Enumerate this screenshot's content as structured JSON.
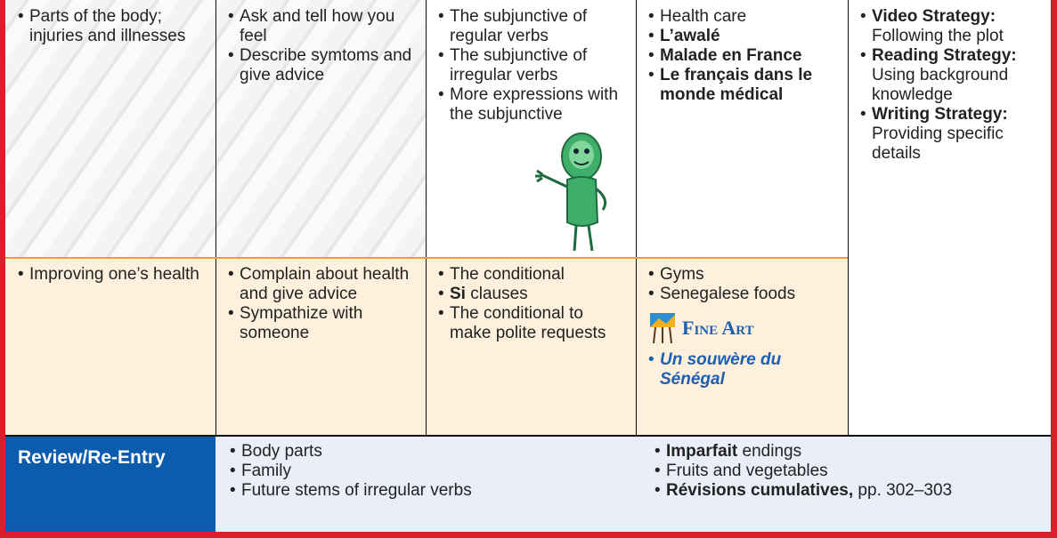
{
  "rows": [
    {
      "cells": [
        {
          "items": [
            [
              {
                "text": "Parts of the body; injuries and illnesses"
              }
            ]
          ]
        },
        {
          "items": [
            [
              {
                "text": "Ask and tell how you feel"
              }
            ],
            [
              {
                "text": "Describe symtoms and give advice"
              }
            ]
          ]
        },
        {
          "items": [
            [
              {
                "text": "The subjunctive of regular verbs"
              }
            ],
            [
              {
                "text": "The subjunctive of irregular verbs"
              }
            ],
            [
              {
                "text": "More expressions with the subjunctive"
              }
            ]
          ]
        },
        {
          "items": [
            [
              {
                "text": "Health care"
              }
            ],
            [
              {
                "text": "L’awalé",
                "bold": true
              }
            ],
            [
              {
                "text": "Malade en France",
                "bold": true
              }
            ],
            [
              {
                "text": "Le français dans le monde médical",
                "bold": true
              }
            ]
          ]
        },
        {
          "items": [
            [
              {
                "text": "Video Strategy:",
                "bold": true
              },
              {
                "text": " Following the plot"
              }
            ],
            [
              {
                "text": "Reading Strategy:",
                "bold": true
              },
              {
                "text": " Using background knowledge"
              }
            ],
            [
              {
                "text": "Writing Strategy:",
                "bold": true
              },
              {
                "text": " Providing specific details"
              }
            ]
          ]
        }
      ]
    },
    {
      "cells": [
        {
          "items": [
            [
              {
                "text": "Improving one’s health"
              }
            ]
          ]
        },
        {
          "items": [
            [
              {
                "text": "Complain about health and give advice"
              }
            ],
            [
              {
                "text": "Sympathize with someone"
              }
            ]
          ]
        },
        {
          "items": [
            [
              {
                "text": "The conditional"
              }
            ],
            [
              {
                "text": "Si",
                "bold": true
              },
              {
                "text": " clauses"
              }
            ],
            [
              {
                "text": "The conditional to make polite requests"
              }
            ]
          ]
        },
        {
          "items": [
            [
              {
                "text": "Gyms"
              }
            ],
            [
              {
                "text": "Senegalese foods"
              }
            ]
          ],
          "heading": "Fine Art",
          "after_heading": [
            [
              {
                "text": "Un souwère du Sénégal",
                "bold": true,
                "italic": true
              }
            ]
          ]
        }
      ]
    }
  ],
  "review": {
    "label": "Review/Re-Entry",
    "columns": [
      {
        "items": [
          [
            {
              "text": "Body parts"
            }
          ],
          [
            {
              "text": "Family"
            }
          ],
          [
            {
              "text": "Future stems of irregular verbs"
            }
          ]
        ]
      },
      {
        "items": [
          [
            {
              "text": "Imparfait",
              "bold": true
            },
            {
              "text": " endings"
            }
          ],
          [
            {
              "text": "Fruits and vegetables"
            }
          ],
          [
            {
              "text": "Révisions cumulatives,",
              "bold": true
            },
            {
              "text": " pp. 302–303"
            }
          ]
        ]
      }
    ]
  }
}
